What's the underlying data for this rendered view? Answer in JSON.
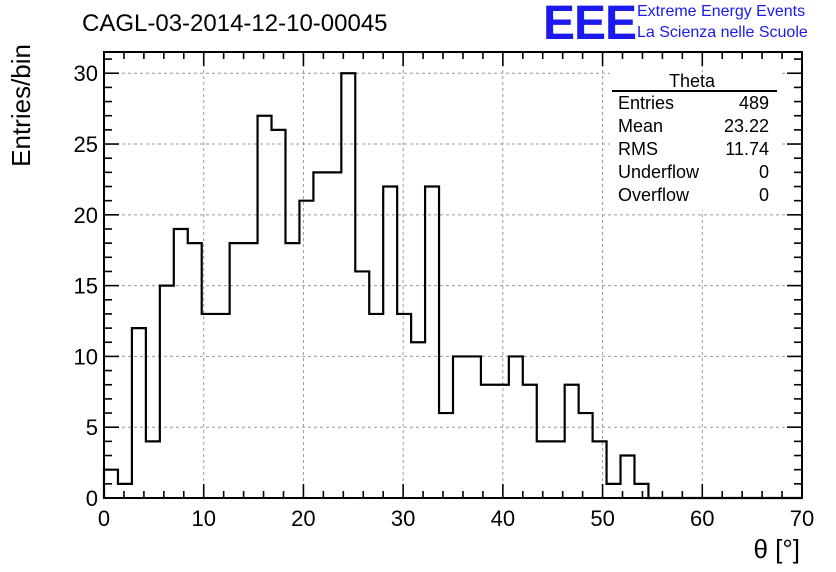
{
  "header": {
    "run_title": "CAGL-03-2014-12-10-00045",
    "logo_text": "EEE",
    "logo_line1": "Extreme Energy Events",
    "logo_line2": "La Scienza nelle Scuole"
  },
  "stats": {
    "name": "Theta",
    "rows": [
      {
        "label": "Entries",
        "value": "489"
      },
      {
        "label": "Mean",
        "value": "23.22"
      },
      {
        "label": "RMS",
        "value": "11.74"
      },
      {
        "label": "Underflow",
        "value": "0"
      },
      {
        "label": "Overflow",
        "value": "0"
      }
    ]
  },
  "colors": {
    "logo": "#1a1aee",
    "histogram_line": "#000000",
    "grid": "#9a9a9a"
  },
  "chart_data": {
    "type": "bar",
    "histogram_style": "step",
    "xlabel": "θ [°]",
    "ylabel": "Entries/bin",
    "xlim": [
      0,
      70
    ],
    "ylim": [
      0,
      31.5
    ],
    "grid": true,
    "x_ticks": [
      0,
      10,
      20,
      30,
      40,
      50,
      60,
      70
    ],
    "y_ticks": [
      0,
      5,
      10,
      15,
      20,
      25,
      30
    ],
    "bin_width": 1.4,
    "bin_edges_start": 0,
    "values": [
      2,
      1,
      12,
      4,
      15,
      19,
      18,
      13,
      13,
      18,
      18,
      27,
      26,
      18,
      21,
      23,
      23,
      30,
      16,
      13,
      22,
      13,
      11,
      22,
      6,
      10,
      10,
      8,
      8,
      10,
      8,
      4,
      4,
      8,
      6,
      4,
      1,
      3,
      1,
      0,
      0,
      0,
      0,
      0,
      0,
      0,
      0,
      0,
      0,
      0
    ],
    "stats_legend_position": "top-right"
  }
}
